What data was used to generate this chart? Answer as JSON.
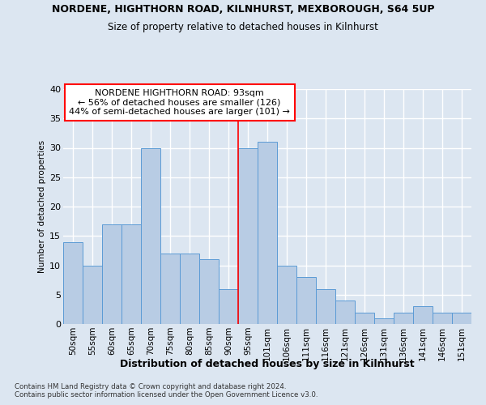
{
  "title1": "NORDENE, HIGHTHORN ROAD, KILNHURST, MEXBOROUGH, S64 5UP",
  "title2": "Size of property relative to detached houses in Kilnhurst",
  "xlabel": "Distribution of detached houses by size in Kilnhurst",
  "ylabel": "Number of detached properties",
  "categories": [
    "50sqm",
    "55sqm",
    "60sqm",
    "65sqm",
    "70sqm",
    "75sqm",
    "80sqm",
    "85sqm",
    "90sqm",
    "95sqm",
    "101sqm",
    "106sqm",
    "111sqm",
    "116sqm",
    "121sqm",
    "126sqm",
    "131sqm",
    "136sqm",
    "141sqm",
    "146sqm",
    "151sqm"
  ],
  "values": [
    14,
    10,
    17,
    17,
    30,
    12,
    12,
    11,
    6,
    30,
    31,
    10,
    8,
    6,
    4,
    2,
    1,
    2,
    3,
    2,
    2
  ],
  "bar_color": "#b8cce4",
  "bar_edge_color": "#5b9bd5",
  "background_color": "#dce6f1",
  "grid_color": "#ffffff",
  "ylim": [
    0,
    40
  ],
  "yticks": [
    0,
    5,
    10,
    15,
    20,
    25,
    30,
    35,
    40
  ],
  "vline_position": 8.5,
  "property_label": "NORDENE HIGHTHORN ROAD: 93sqm",
  "annotation_line1": "← 56% of detached houses are smaller (126)",
  "annotation_line2": "44% of semi-detached houses are larger (101) →",
  "footnote1": "Contains HM Land Registry data © Crown copyright and database right 2024.",
  "footnote2": "Contains public sector information licensed under the Open Government Licence v3.0."
}
